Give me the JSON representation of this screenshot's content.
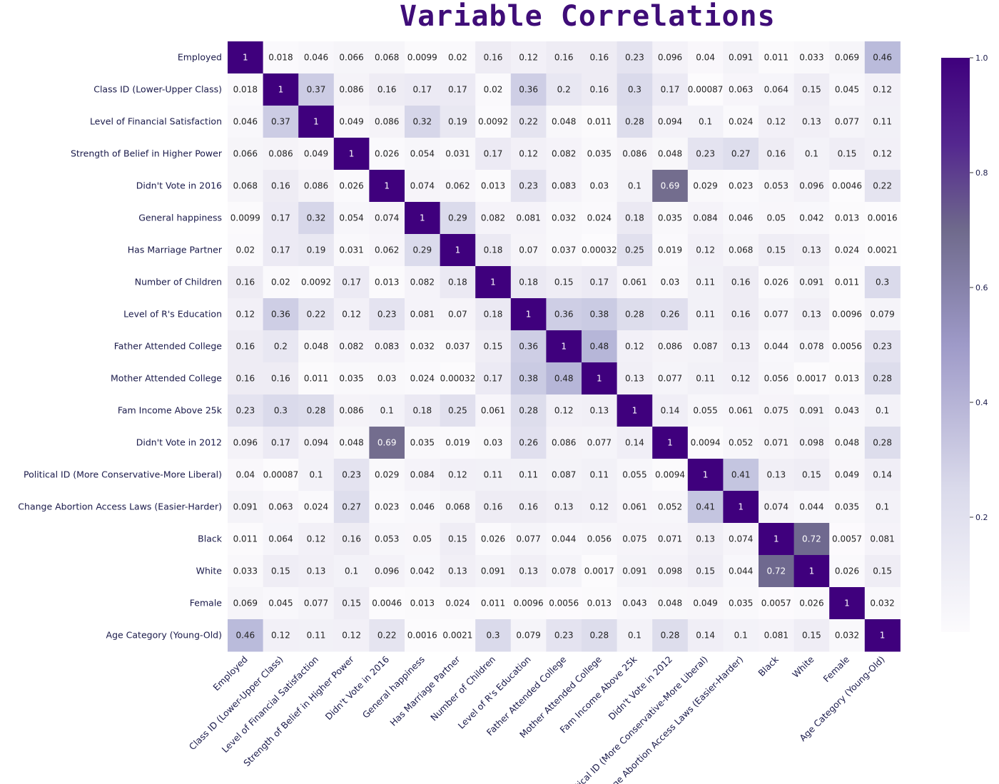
{
  "chart_data": {
    "type": "heatmap",
    "title": "Variable Correlations",
    "xlabel": "",
    "ylabel": "",
    "colormap": {
      "name": "Purples",
      "low": "#fcfbfd",
      "high": "#3f007d"
    },
    "colorbar": {
      "ticks": [
        "0.2",
        "0.4",
        "0.6",
        "0.8",
        "1.0"
      ],
      "range": [
        0,
        1
      ]
    },
    "labels": [
      "Employed",
      "Class ID (Lower-Upper Class)",
      "Level of Financial Satisfaction",
      "Strength of Belief in Higher Power",
      "Didn't Vote in 2016",
      "General happiness",
      "Has Marriage Partner",
      "Number of Children",
      "Level of R's Education",
      "Father Attended College",
      "Mother Attended College",
      "Fam Income Above 25k",
      "Didn't Vote in 2012",
      "Political ID (More Conservative-More Liberal)",
      "Change Abortion Access Laws (Easier-Harder)",
      "Black",
      "White",
      "Female",
      "Age Category (Young-Old)"
    ],
    "matrix": [
      [
        "1",
        "0.018",
        "0.046",
        "0.066",
        "0.068",
        "0.0099",
        "0.02",
        "0.16",
        "0.12",
        "0.16",
        "0.16",
        "0.23",
        "0.096",
        "0.04",
        "0.091",
        "0.011",
        "0.033",
        "0.069",
        "0.46"
      ],
      [
        "0.018",
        "1",
        "0.37",
        "0.086",
        "0.16",
        "0.17",
        "0.17",
        "0.02",
        "0.36",
        "0.2",
        "0.16",
        "0.3",
        "0.17",
        "0.00087",
        "0.063",
        "0.064",
        "0.15",
        "0.045",
        "0.12"
      ],
      [
        "0.046",
        "0.37",
        "1",
        "0.049",
        "0.086",
        "0.32",
        "0.19",
        "0.0092",
        "0.22",
        "0.048",
        "0.011",
        "0.28",
        "0.094",
        "0.1",
        "0.024",
        "0.12",
        "0.13",
        "0.077",
        "0.11"
      ],
      [
        "0.066",
        "0.086",
        "0.049",
        "1",
        "0.026",
        "0.054",
        "0.031",
        "0.17",
        "0.12",
        "0.082",
        "0.035",
        "0.086",
        "0.048",
        "0.23",
        "0.27",
        "0.16",
        "0.1",
        "0.15",
        "0.12"
      ],
      [
        "0.068",
        "0.16",
        "0.086",
        "0.026",
        "1",
        "0.074",
        "0.062",
        "0.013",
        "0.23",
        "0.083",
        "0.03",
        "0.1",
        "0.69",
        "0.029",
        "0.023",
        "0.053",
        "0.096",
        "0.0046",
        "0.22"
      ],
      [
        "0.0099",
        "0.17",
        "0.32",
        "0.054",
        "0.074",
        "1",
        "0.29",
        "0.082",
        "0.081",
        "0.032",
        "0.024",
        "0.18",
        "0.035",
        "0.084",
        "0.046",
        "0.05",
        "0.042",
        "0.013",
        "0.0016"
      ],
      [
        "0.02",
        "0.17",
        "0.19",
        "0.031",
        "0.062",
        "0.29",
        "1",
        "0.18",
        "0.07",
        "0.037",
        "0.00032",
        "0.25",
        "0.019",
        "0.12",
        "0.068",
        "0.15",
        "0.13",
        "0.024",
        "0.0021"
      ],
      [
        "0.16",
        "0.02",
        "0.0092",
        "0.17",
        "0.013",
        "0.082",
        "0.18",
        "1",
        "0.18",
        "0.15",
        "0.17",
        "0.061",
        "0.03",
        "0.11",
        "0.16",
        "0.026",
        "0.091",
        "0.011",
        "0.3"
      ],
      [
        "0.12",
        "0.36",
        "0.22",
        "0.12",
        "0.23",
        "0.081",
        "0.07",
        "0.18",
        "1",
        "0.36",
        "0.38",
        "0.28",
        "0.26",
        "0.11",
        "0.16",
        "0.077",
        "0.13",
        "0.0096",
        "0.079"
      ],
      [
        "0.16",
        "0.2",
        "0.048",
        "0.082",
        "0.083",
        "0.032",
        "0.037",
        "0.15",
        "0.36",
        "1",
        "0.48",
        "0.12",
        "0.086",
        "0.087",
        "0.13",
        "0.044",
        "0.078",
        "0.0056",
        "0.23"
      ],
      [
        "0.16",
        "0.16",
        "0.011",
        "0.035",
        "0.03",
        "0.024",
        "0.00032",
        "0.17",
        "0.38",
        "0.48",
        "1",
        "0.13",
        "0.077",
        "0.11",
        "0.12",
        "0.056",
        "0.0017",
        "0.013",
        "0.28"
      ],
      [
        "0.23",
        "0.3",
        "0.28",
        "0.086",
        "0.1",
        "0.18",
        "0.25",
        "0.061",
        "0.28",
        "0.12",
        "0.13",
        "1",
        "0.14",
        "0.055",
        "0.061",
        "0.075",
        "0.091",
        "0.043",
        "0.1"
      ],
      [
        "0.096",
        "0.17",
        "0.094",
        "0.048",
        "0.69",
        "0.035",
        "0.019",
        "0.03",
        "0.26",
        "0.086",
        "0.077",
        "0.14",
        "1",
        "0.0094",
        "0.052",
        "0.071",
        "0.098",
        "0.048",
        "0.28"
      ],
      [
        "0.04",
        "0.00087",
        "0.1",
        "0.23",
        "0.029",
        "0.084",
        "0.12",
        "0.11",
        "0.11",
        "0.087",
        "0.11",
        "0.055",
        "0.0094",
        "1",
        "0.41",
        "0.13",
        "0.15",
        "0.049",
        "0.14"
      ],
      [
        "0.091",
        "0.063",
        "0.024",
        "0.27",
        "0.023",
        "0.046",
        "0.068",
        "0.16",
        "0.16",
        "0.13",
        "0.12",
        "0.061",
        "0.052",
        "0.41",
        "1",
        "0.074",
        "0.044",
        "0.035",
        "0.1"
      ],
      [
        "0.011",
        "0.064",
        "0.12",
        "0.16",
        "0.053",
        "0.05",
        "0.15",
        "0.026",
        "0.077",
        "0.044",
        "0.056",
        "0.075",
        "0.071",
        "0.13",
        "0.074",
        "1",
        "0.72",
        "0.0057",
        "0.081"
      ],
      [
        "0.033",
        "0.15",
        "0.13",
        "0.1",
        "0.096",
        "0.042",
        "0.13",
        "0.091",
        "0.13",
        "0.078",
        "0.0017",
        "0.091",
        "0.098",
        "0.15",
        "0.044",
        "0.72",
        "1",
        "0.026",
        "0.15"
      ],
      [
        "0.069",
        "0.045",
        "0.077",
        "0.15",
        "0.0046",
        "0.013",
        "0.024",
        "0.011",
        "0.0096",
        "0.0056",
        "0.013",
        "0.043",
        "0.048",
        "0.049",
        "0.035",
        "0.0057",
        "0.026",
        "1",
        "0.032"
      ],
      [
        "0.46",
        "0.12",
        "0.11",
        "0.12",
        "0.22",
        "0.0016",
        "0.0021",
        "0.3",
        "0.079",
        "0.23",
        "0.28",
        "0.1",
        "0.28",
        "0.14",
        "0.1",
        "0.081",
        "0.15",
        "0.032",
        "1"
      ]
    ]
  }
}
